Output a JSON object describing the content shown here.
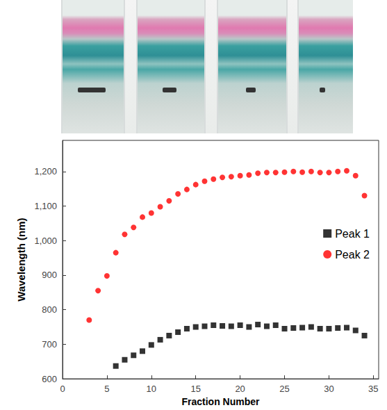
{
  "chart_data": {
    "type": "scatter",
    "xlabel": "Fraction Number",
    "ylabel": "Wavelength (nm)",
    "xlim": [
      0,
      35.6
    ],
    "xticks": [
      0,
      5,
      10,
      15,
      20,
      25,
      30,
      35
    ],
    "ylim": [
      600,
      1290
    ],
    "yticks": [
      600,
      700,
      800,
      900,
      1000,
      1100,
      1200
    ],
    "grid": false,
    "legend": "right",
    "series": [
      {
        "name": "Peak 1",
        "color": "#000000",
        "marker": "square",
        "x": [
          6,
          7,
          8,
          9,
          10,
          11,
          12,
          13,
          14,
          15,
          16,
          17,
          18,
          19,
          20,
          21,
          22,
          23,
          24,
          25,
          26,
          27,
          28,
          29,
          30,
          31,
          32,
          33,
          34
        ],
        "values": [
          637,
          655,
          668,
          680,
          698,
          713,
          725,
          735,
          745,
          750,
          752,
          755,
          753,
          752,
          755,
          750,
          757,
          752,
          755,
          745,
          747,
          748,
          750,
          745,
          745,
          747,
          748,
          740,
          725
        ]
      },
      {
        "name": "Peak 2",
        "color": "#ff0000",
        "marker": "circle",
        "x": [
          3,
          4,
          5,
          6,
          7,
          8,
          9,
          10,
          11,
          12,
          13,
          14,
          15,
          16,
          17,
          18,
          19,
          20,
          21,
          22,
          23,
          24,
          25,
          26,
          27,
          28,
          29,
          30,
          31,
          32,
          33,
          34
        ],
        "values": [
          770,
          855,
          898,
          965,
          1018,
          1038,
          1068,
          1080,
          1098,
          1115,
          1135,
          1148,
          1162,
          1172,
          1178,
          1183,
          1185,
          1188,
          1190,
          1195,
          1197,
          1197,
          1198,
          1200,
          1198,
          1200,
          1197,
          1197,
          1200,
          1202,
          1188,
          1130
        ]
      }
    ]
  }
}
